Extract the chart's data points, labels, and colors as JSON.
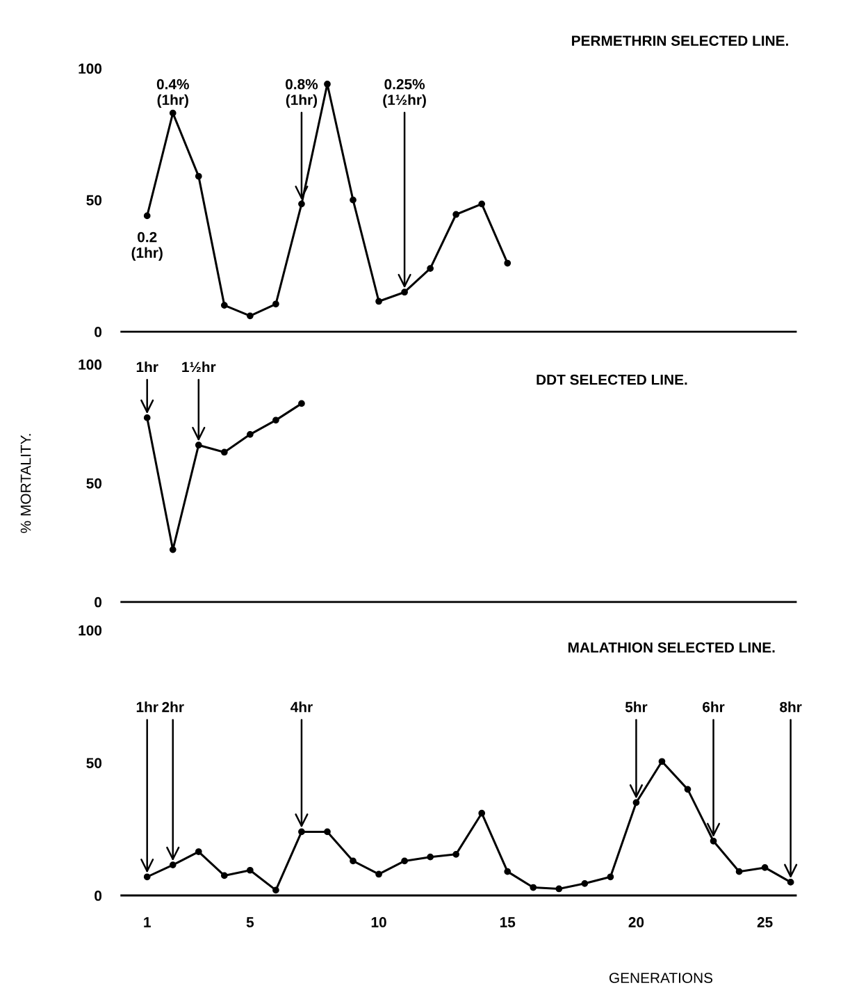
{
  "chart_data": [
    {
      "type": "line",
      "title": "PERMETHRIN SELECTED LINE.",
      "x": [
        1,
        2,
        3,
        4,
        5,
        6,
        7,
        8,
        9,
        10,
        11,
        12,
        13,
        14,
        15
      ],
      "values": [
        44,
        83,
        59,
        10,
        6,
        10.5,
        48.5,
        94,
        50,
        11.5,
        15,
        24,
        44.5,
        48.5,
        26
      ],
      "color": "#000000",
      "marker": "circle",
      "line_style": "solid",
      "xlim": [
        0,
        26.2
      ],
      "xticks": [
        1,
        5,
        10,
        15,
        20,
        25
      ],
      "ylim": [
        0,
        100
      ],
      "yticks": [
        0,
        50,
        100
      ],
      "tick_labels": "y",
      "annotations": [
        {
          "text": "0.2\n(1hr)",
          "x": 1,
          "y": 44
        },
        {
          "text": "0.4%\n(1hr)",
          "x": 2,
          "y": 83
        },
        {
          "text": "0.8%\n(1hr)",
          "x": 7,
          "y": 48.5
        },
        {
          "text": "0.25%\n(1½hr)",
          "x": 11,
          "y": 15
        }
      ]
    },
    {
      "type": "line",
      "title": "DDT SELECTED LINE.",
      "ylabel": "% MORTALITY.",
      "x": [
        1,
        2,
        3,
        4,
        5,
        6,
        7
      ],
      "values": [
        77.5,
        22,
        66,
        63,
        70.5,
        76.5,
        83.5
      ],
      "color": "#000000",
      "marker": "circle",
      "line_style": "solid",
      "xlim": [
        0,
        26.2
      ],
      "xticks": [
        1,
        5,
        10,
        15,
        20,
        25
      ],
      "ylim": [
        0,
        100
      ],
      "yticks": [
        0,
        50,
        100
      ],
      "tick_labels": "y",
      "annotations": [
        {
          "text": "1hr",
          "x": 1,
          "y": 77.5
        },
        {
          "text": "1½hr",
          "x": 3,
          "y": 66
        }
      ]
    },
    {
      "type": "line",
      "title": "MALATHION SELECTED LINE.",
      "xlabel": "GENERATIONS",
      "x": [
        1,
        2,
        3,
        4,
        5,
        6,
        7,
        8,
        9,
        10,
        11,
        12,
        13,
        14,
        15,
        16,
        17,
        18,
        19,
        20,
        21,
        22,
        23,
        24,
        25,
        26
      ],
      "values": [
        7,
        11.5,
        16.5,
        7.5,
        9.5,
        2,
        24,
        24,
        13,
        8,
        13,
        14.5,
        15.5,
        31,
        9,
        3,
        2.5,
        4.5,
        7,
        35,
        50.5,
        40,
        20.5,
        9,
        10.5,
        5
      ],
      "color": "#000000",
      "marker": "circle",
      "line_style": "solid",
      "xlim": [
        0,
        26.2
      ],
      "xticks": [
        1,
        5,
        10,
        15,
        20,
        25
      ],
      "ylim": [
        0,
        100
      ],
      "yticks": [
        0,
        50,
        100
      ],
      "annotations": [
        {
          "text": "1hr",
          "x": 1,
          "y": 7
        },
        {
          "text": "2hr",
          "x": 2,
          "y": 11.5
        },
        {
          "text": "4hr",
          "x": 7,
          "y": 24
        },
        {
          "text": "5hr",
          "x": 20,
          "y": 35
        },
        {
          "text": "6hr",
          "x": 23,
          "y": 20.5
        },
        {
          "text": "8hr",
          "x": 26,
          "y": 5
        }
      ]
    }
  ]
}
